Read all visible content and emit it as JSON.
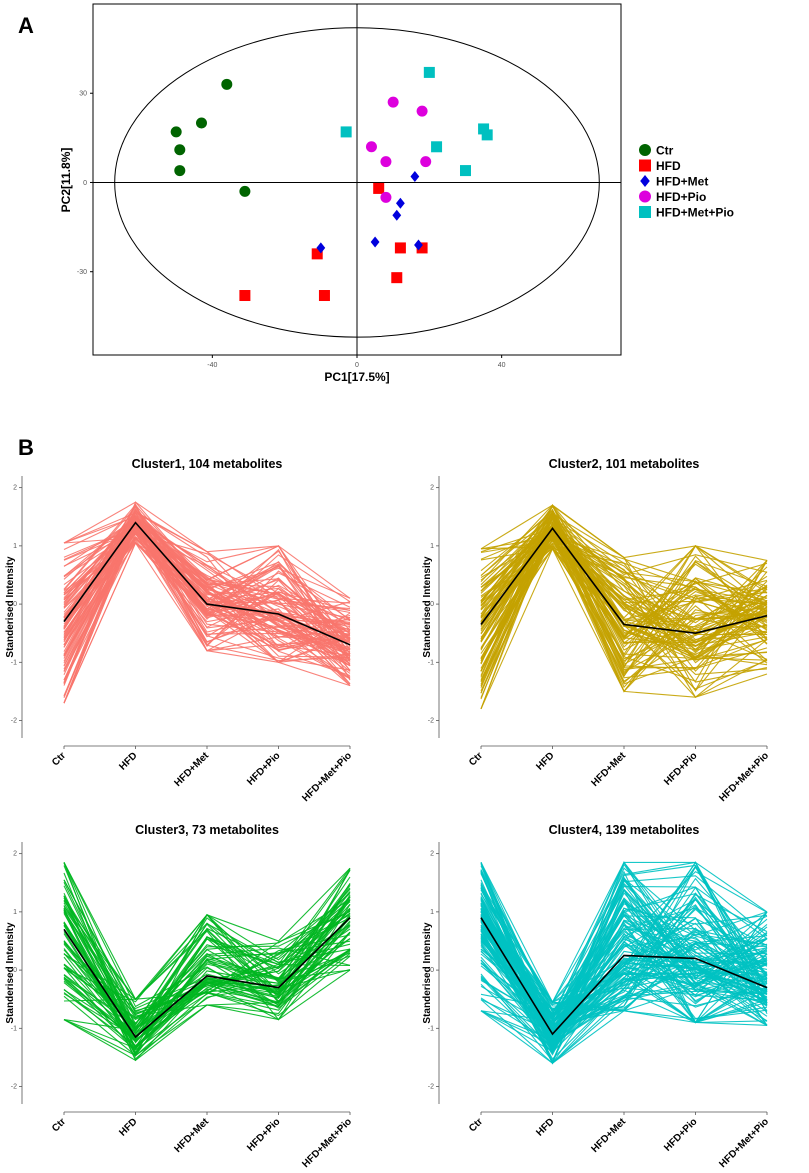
{
  "panel_a_letter": "A",
  "panel_b_letter": "B",
  "chart_data": [
    {
      "type": "scatter",
      "panel": "A",
      "xlabel": "PC1[17.5%]",
      "ylabel": "PC2[11.8%]",
      "xticks": [
        -40,
        0,
        40
      ],
      "yticks": [
        -30,
        0,
        30
      ],
      "xlim": [
        -73,
        73
      ],
      "ylim": [
        -58,
        60
      ],
      "ellipse": {
        "cx": 0,
        "cy": 0,
        "rx": 67,
        "ry": 52
      },
      "legend_position": "right",
      "series": [
        {
          "name": "Ctr",
          "color": "#006400",
          "marker": "circle",
          "points": [
            [
              -36,
              33
            ],
            [
              -43,
              20
            ],
            [
              -50,
              17
            ],
            [
              -49,
              11
            ],
            [
              -49,
              4
            ],
            [
              -31,
              -3
            ]
          ]
        },
        {
          "name": "HFD",
          "color": "#ff0000",
          "marker": "square",
          "points": [
            [
              6,
              -2
            ],
            [
              -11,
              -24
            ],
            [
              12,
              -22
            ],
            [
              18,
              -22
            ],
            [
              11,
              -32
            ],
            [
              -31,
              -38
            ],
            [
              -9,
              -38
            ]
          ]
        },
        {
          "name": "HFD+Met",
          "color": "#0000dd",
          "marker": "diamond",
          "points": [
            [
              16,
              2
            ],
            [
              12,
              -7
            ],
            [
              11,
              -11
            ],
            [
              -10,
              -22
            ],
            [
              5,
              -20
            ],
            [
              17,
              -21
            ]
          ]
        },
        {
          "name": "HFD+Pio",
          "color": "#dd00dd",
          "marker": "circle",
          "points": [
            [
              10,
              27
            ],
            [
              18,
              24
            ],
            [
              4,
              12
            ],
            [
              8,
              7
            ],
            [
              19,
              7
            ],
            [
              8,
              -5
            ]
          ]
        },
        {
          "name": "HFD+Met+Pio",
          "color": "#00c0c0",
          "marker": "square",
          "points": [
            [
              20,
              37
            ],
            [
              -3,
              17
            ],
            [
              35,
              18
            ],
            [
              36,
              16
            ],
            [
              22,
              12
            ],
            [
              30,
              4
            ]
          ]
        }
      ]
    },
    {
      "type": "line",
      "panel": "B",
      "title": "Cluster1, 104 metabolites",
      "ylabel": "Standerised Intensity",
      "categories": [
        "Ctr",
        "HFD",
        "HFD+Met",
        "HFD+Pio",
        "HFD+Met+Pio"
      ],
      "yticks": [
        -2,
        -1,
        0,
        1,
        2
      ],
      "ylim": [
        -2.3,
        2.2
      ],
      "color": "#f8766d",
      "n_lines": 104,
      "mean_line": [
        -0.3,
        1.4,
        0.0,
        -0.17,
        -0.7
      ],
      "line_min": [
        -1.7,
        1.05,
        -0.8,
        -1.0,
        -1.4
      ],
      "line_max": [
        1.05,
        1.75,
        0.9,
        1.0,
        0.1
      ]
    },
    {
      "type": "line",
      "panel": "B",
      "title": "Cluster2, 101 metabolites",
      "ylabel": "Standerised Intensity",
      "categories": [
        "Ctr",
        "HFD",
        "HFD+Met",
        "HFD+Pio",
        "HFD+Met+Pio"
      ],
      "yticks": [
        -2,
        -1,
        0,
        1,
        2
      ],
      "ylim": [
        -2.3,
        2.2
      ],
      "color": "#c4a200",
      "n_lines": 101,
      "mean_line": [
        -0.35,
        1.3,
        -0.35,
        -0.5,
        -0.2
      ],
      "line_min": [
        -1.8,
        0.95,
        -1.5,
        -1.6,
        -1.2
      ],
      "line_max": [
        0.95,
        1.7,
        0.8,
        1.0,
        0.75
      ]
    },
    {
      "type": "line",
      "panel": "B",
      "title": "Cluster3, 73 metabolites",
      "ylabel": "Standerised Intensity",
      "categories": [
        "Ctr",
        "HFD",
        "HFD+Met",
        "HFD+Pio",
        "HFD+Met+Pio"
      ],
      "yticks": [
        -2,
        -1,
        0,
        1,
        2
      ],
      "ylim": [
        -2.3,
        2.2
      ],
      "color": "#00b620",
      "n_lines": 73,
      "mean_line": [
        0.7,
        -1.15,
        -0.1,
        -0.3,
        0.9
      ],
      "line_min": [
        -0.85,
        -1.55,
        -0.6,
        -0.85,
        0.0
      ],
      "line_max": [
        1.85,
        -0.5,
        0.95,
        0.5,
        1.75
      ]
    },
    {
      "type": "line",
      "panel": "B",
      "title": "Cluster4, 139 metabolites",
      "ylabel": "Standerised Intensity",
      "categories": [
        "Ctr",
        "HFD",
        "HFD+Met",
        "HFD+Pio",
        "HFD+Met+Pio"
      ],
      "yticks": [
        -2,
        -1,
        0,
        1,
        2
      ],
      "ylim": [
        -2.3,
        2.2
      ],
      "color": "#00c2c2",
      "n_lines": 139,
      "mean_line": [
        0.9,
        -1.1,
        0.25,
        0.2,
        -0.3
      ],
      "line_min": [
        -0.7,
        -1.6,
        -0.7,
        -0.9,
        -0.95
      ],
      "line_max": [
        1.85,
        -0.55,
        1.85,
        1.85,
        1.0
      ]
    }
  ]
}
